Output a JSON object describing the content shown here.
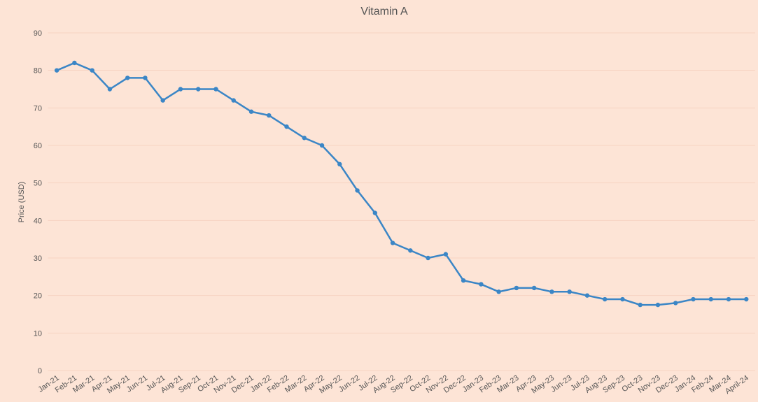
{
  "chart_data": {
    "type": "line",
    "title": "Vitamin A",
    "y_label": "Price (USD)",
    "categories": [
      "Jan-21",
      "Feb-21",
      "Mar-21",
      "Apr-21",
      "May-21",
      "Jun-21",
      "Jul-21",
      "Aug-21",
      "Sep-21",
      "Oct-21",
      "Nov-21",
      "Dec-21",
      "Jan-22",
      "Feb-22",
      "Mar-22",
      "Apr-22",
      "May-22",
      "Jun-22",
      "Jul-22",
      "Aug-22",
      "Sep-22",
      "Oct-22",
      "Nov-22",
      "Dec-22",
      "Jan-23",
      "Feb-23",
      "Mar-23",
      "Apr-23",
      "May-23",
      "Jun-23",
      "Jul-23",
      "Aug-23",
      "Sep-23",
      "Oct-23",
      "Nov-23",
      "Dec-23",
      "Jan-24",
      "Feb-24",
      "Mar-24",
      "April-24"
    ],
    "series": [
      {
        "name": "Vitamin A",
        "color": "#3b86c6",
        "values": [
          80,
          82,
          80,
          75,
          78,
          78,
          72,
          75,
          75,
          75,
          72,
          69,
          68,
          65,
          62,
          60,
          55,
          48,
          42,
          34,
          32,
          30,
          31,
          24,
          23,
          21,
          22,
          22,
          21,
          21,
          20,
          19,
          19,
          17.5,
          17.5,
          18,
          19,
          19,
          19,
          19
        ]
      }
    ],
    "ylim": [
      0,
      90
    ],
    "yticks": [
      0,
      10,
      20,
      30,
      40,
      50,
      60,
      70,
      80,
      90
    ],
    "grid": true
  }
}
